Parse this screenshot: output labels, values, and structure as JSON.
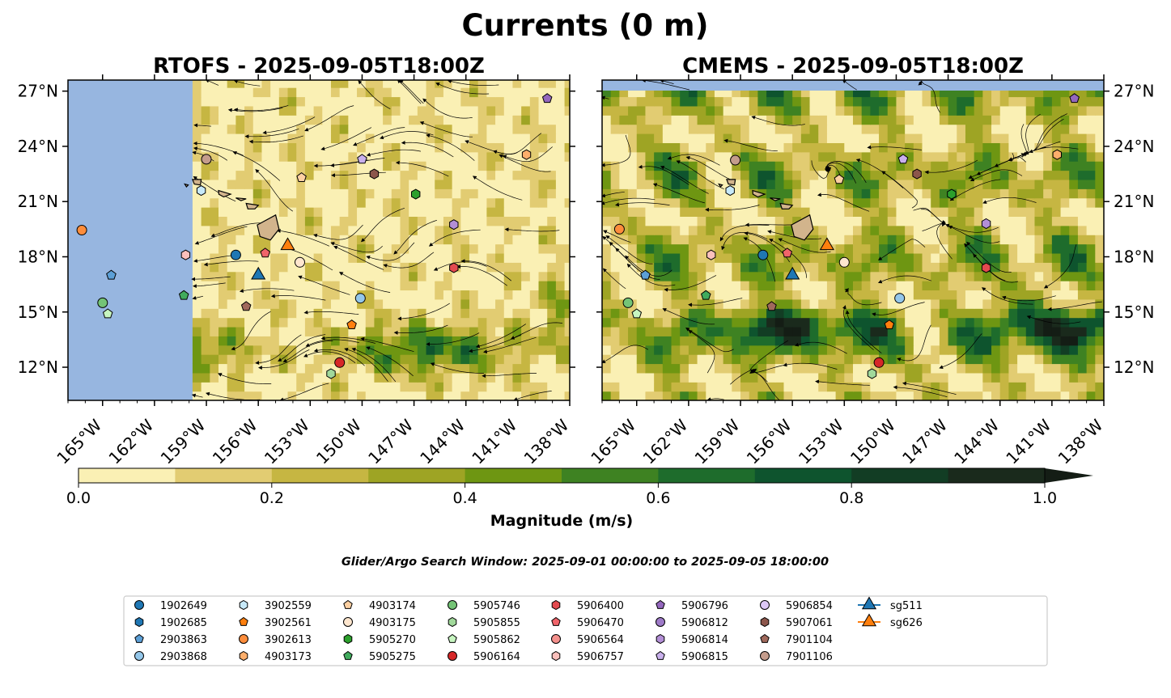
{
  "title": "Currents (0 m)",
  "colors": {
    "land": "#d2b48c",
    "nodata": "#97b6e0",
    "frame": "#000000",
    "streamline": "#000000"
  },
  "panels": [
    {
      "id": "rtofs",
      "title": "RTOFS - 2025-09-05T18:00Z",
      "lat_labels_side": "left"
    },
    {
      "id": "cmems",
      "title": "CMEMS - 2025-09-05T18:00Z",
      "lat_labels_side": "right"
    }
  ],
  "map_extent": {
    "lon": [
      -167,
      -138
    ],
    "lat": [
      10.2,
      27.6
    ]
  },
  "lon_ticks": [
    -165,
    -162,
    -159,
    -156,
    -153,
    -150,
    -147,
    -144,
    -141,
    -138
  ],
  "lon_tick_labels": [
    "165°W",
    "162°W",
    "159°W",
    "156°W",
    "153°W",
    "150°W",
    "147°W",
    "144°W",
    "141°W",
    "138°W"
  ],
  "lat_ticks": [
    12,
    15,
    18,
    21,
    24,
    27
  ],
  "lat_tick_labels": [
    "12°N",
    "15°N",
    "18°N",
    "21°N",
    "24°N",
    "27°N"
  ],
  "colorbar": {
    "label": "Magnitude (m/s)",
    "range": [
      0,
      1
    ],
    "extend": "max",
    "ticks": [
      0.0,
      0.2,
      0.4,
      0.6,
      0.8,
      1.0
    ],
    "tick_labels": [
      "0.0",
      "0.2",
      "0.4",
      "0.6",
      "0.8",
      "1.0"
    ],
    "colors": [
      "#faf0b4",
      "#e2cc72",
      "#c6b642",
      "#9ea424",
      "#6e9612",
      "#3e8222",
      "#1e6c2c",
      "#0e542e",
      "#123d24",
      "#1a2a1c"
    ],
    "extend_color": "#141d15"
  },
  "search_window": "Glider/Argo Search Window: 2025-09-01 00:00:00 to 2025-09-05 18:00:00",
  "legend": [
    {
      "label": "1902649",
      "marker": "circle",
      "color": "#1f77b4"
    },
    {
      "label": "1902685",
      "marker": "hexagon",
      "color": "#1f77b4"
    },
    {
      "label": "2903863",
      "marker": "pentagon",
      "color": "#5c9fd6"
    },
    {
      "label": "2903868",
      "marker": "circle",
      "color": "#94c7ea"
    },
    {
      "label": "3902559",
      "marker": "hexagon",
      "color": "#c7e9f9"
    },
    {
      "label": "3902561",
      "marker": "pentagon",
      "color": "#ff7f0e"
    },
    {
      "label": "3902613",
      "marker": "circle",
      "color": "#fd8d3c"
    },
    {
      "label": "4903173",
      "marker": "hexagon",
      "color": "#fdae6b"
    },
    {
      "label": "4903174",
      "marker": "pentagon",
      "color": "#fdd0a2"
    },
    {
      "label": "4903175",
      "marker": "circle",
      "color": "#fee6ce"
    },
    {
      "label": "5905270",
      "marker": "hexagon",
      "color": "#2ca02c"
    },
    {
      "label": "5905275",
      "marker": "pentagon",
      "color": "#41ab5d"
    },
    {
      "label": "5905746",
      "marker": "circle",
      "color": "#74c476"
    },
    {
      "label": "5905855",
      "marker": "hexagon",
      "color": "#a1d99b"
    },
    {
      "label": "5905862",
      "marker": "pentagon",
      "color": "#c7f5c0"
    },
    {
      "label": "5906164",
      "marker": "circle",
      "color": "#d62728"
    },
    {
      "label": "5906400",
      "marker": "hexagon",
      "color": "#e34a4f"
    },
    {
      "label": "5906470",
      "marker": "pentagon",
      "color": "#f0646a"
    },
    {
      "label": "5906564",
      "marker": "circle",
      "color": "#f4908c"
    },
    {
      "label": "5906757",
      "marker": "hexagon",
      "color": "#fbc0bc"
    },
    {
      "label": "5906796",
      "marker": "pentagon",
      "color": "#9467bd"
    },
    {
      "label": "5906812",
      "marker": "circle",
      "color": "#9e7ac8"
    },
    {
      "label": "5906814",
      "marker": "hexagon",
      "color": "#b38fd6"
    },
    {
      "label": "5906815",
      "marker": "pentagon",
      "color": "#c9b0ec"
    },
    {
      "label": "5906854",
      "marker": "circle",
      "color": "#dcc8f5"
    },
    {
      "label": "5907061",
      "marker": "hexagon",
      "color": "#8c564b"
    },
    {
      "label": "7901104",
      "marker": "pentagon",
      "color": "#a0695c"
    },
    {
      "label": "7901106",
      "marker": "circle",
      "color": "#c49c8c"
    },
    {
      "label": "sg511",
      "marker": "triangle",
      "color": "#1f77b4",
      "line": true
    },
    {
      "label": "sg626",
      "marker": "triangle",
      "color": "#ff7f0e",
      "line": true
    }
  ],
  "observations": {
    "rtofs": [
      {
        "label": "3902613",
        "lon": -166.2,
        "lat": 19.45
      },
      {
        "label": "2903863",
        "lon": -164.5,
        "lat": 17.0
      },
      {
        "label": "5905746",
        "lon": -165.0,
        "lat": 15.5
      },
      {
        "label": "5905862",
        "lon": -164.7,
        "lat": 14.9
      },
      {
        "label": "7901106",
        "lon": -159.0,
        "lat": 23.3
      },
      {
        "label": "3902559",
        "lon": -159.3,
        "lat": 21.6
      },
      {
        "label": "5906757",
        "lon": -160.2,
        "lat": 18.1
      },
      {
        "label": "5905275",
        "lon": -160.3,
        "lat": 15.9
      },
      {
        "label": "1902649",
        "lon": -157.3,
        "lat": 18.1
      },
      {
        "label": "sg511",
        "lon": -156.0,
        "lat": 17.0
      },
      {
        "label": "7901104",
        "lon": -156.7,
        "lat": 15.3
      },
      {
        "label": "5906470",
        "lon": -155.6,
        "lat": 18.2
      },
      {
        "label": "sg626",
        "lon": -154.3,
        "lat": 18.6
      },
      {
        "label": "4903175",
        "lon": -153.6,
        "lat": 17.7
      },
      {
        "label": "4903174",
        "lon": -153.5,
        "lat": 22.3
      },
      {
        "label": "5906815",
        "lon": -150.0,
        "lat": 23.3
      },
      {
        "label": "5907061",
        "lon": -149.3,
        "lat": 22.5
      },
      {
        "label": "5905270",
        "lon": -146.9,
        "lat": 21.4
      },
      {
        "label": "5906814",
        "lon": -144.7,
        "lat": 19.75
      },
      {
        "label": "5906400",
        "lon": -144.7,
        "lat": 17.4
      },
      {
        "label": "2903868",
        "lon": -150.1,
        "lat": 15.75
      },
      {
        "label": "3902561",
        "lon": -150.6,
        "lat": 14.3
      },
      {
        "label": "5906164",
        "lon": -151.3,
        "lat": 12.25
      },
      {
        "label": "5905855",
        "lon": -151.8,
        "lat": 11.65
      },
      {
        "label": "4903173",
        "lon": -140.5,
        "lat": 23.55
      },
      {
        "label": "5906796",
        "lon": -139.3,
        "lat": 26.6
      }
    ],
    "cmems": [
      {
        "label": "3902613",
        "lon": -166.0,
        "lat": 19.5
      },
      {
        "label": "2903863",
        "lon": -164.5,
        "lat": 17.0
      },
      {
        "label": "5905746",
        "lon": -165.5,
        "lat": 15.5
      },
      {
        "label": "5905862",
        "lon": -165.0,
        "lat": 14.9
      },
      {
        "label": "7901106",
        "lon": -159.3,
        "lat": 23.25
      },
      {
        "label": "3902559",
        "lon": -159.6,
        "lat": 21.6
      },
      {
        "label": "5906757",
        "lon": -160.7,
        "lat": 18.1
      },
      {
        "label": "5905275",
        "lon": -161.0,
        "lat": 15.9
      },
      {
        "label": "1902649",
        "lon": -157.7,
        "lat": 18.1
      },
      {
        "label": "sg511",
        "lon": -156.0,
        "lat": 17.0
      },
      {
        "label": "7901104",
        "lon": -157.2,
        "lat": 15.3
      },
      {
        "label": "5906470",
        "lon": -156.3,
        "lat": 18.2
      },
      {
        "label": "sg626",
        "lon": -154.0,
        "lat": 18.6
      },
      {
        "label": "4903175",
        "lon": -153.0,
        "lat": 17.7
      },
      {
        "label": "4903174",
        "lon": -153.3,
        "lat": 22.2
      },
      {
        "label": "5906815",
        "lon": -149.6,
        "lat": 23.3
      },
      {
        "label": "5907061",
        "lon": -148.8,
        "lat": 22.5
      },
      {
        "label": "5905270",
        "lon": -146.8,
        "lat": 21.4
      },
      {
        "label": "5906814",
        "lon": -144.8,
        "lat": 19.8
      },
      {
        "label": "5906400",
        "lon": -144.8,
        "lat": 17.4
      },
      {
        "label": "2903868",
        "lon": -149.8,
        "lat": 15.75
      },
      {
        "label": "3902561",
        "lon": -150.4,
        "lat": 14.3
      },
      {
        "label": "5906164",
        "lon": -151.0,
        "lat": 12.25
      },
      {
        "label": "5905855",
        "lon": -151.4,
        "lat": 11.65
      },
      {
        "label": "4903173",
        "lon": -140.7,
        "lat": 23.55
      },
      {
        "label": "5906796",
        "lon": -139.7,
        "lat": 26.6
      }
    ]
  }
}
